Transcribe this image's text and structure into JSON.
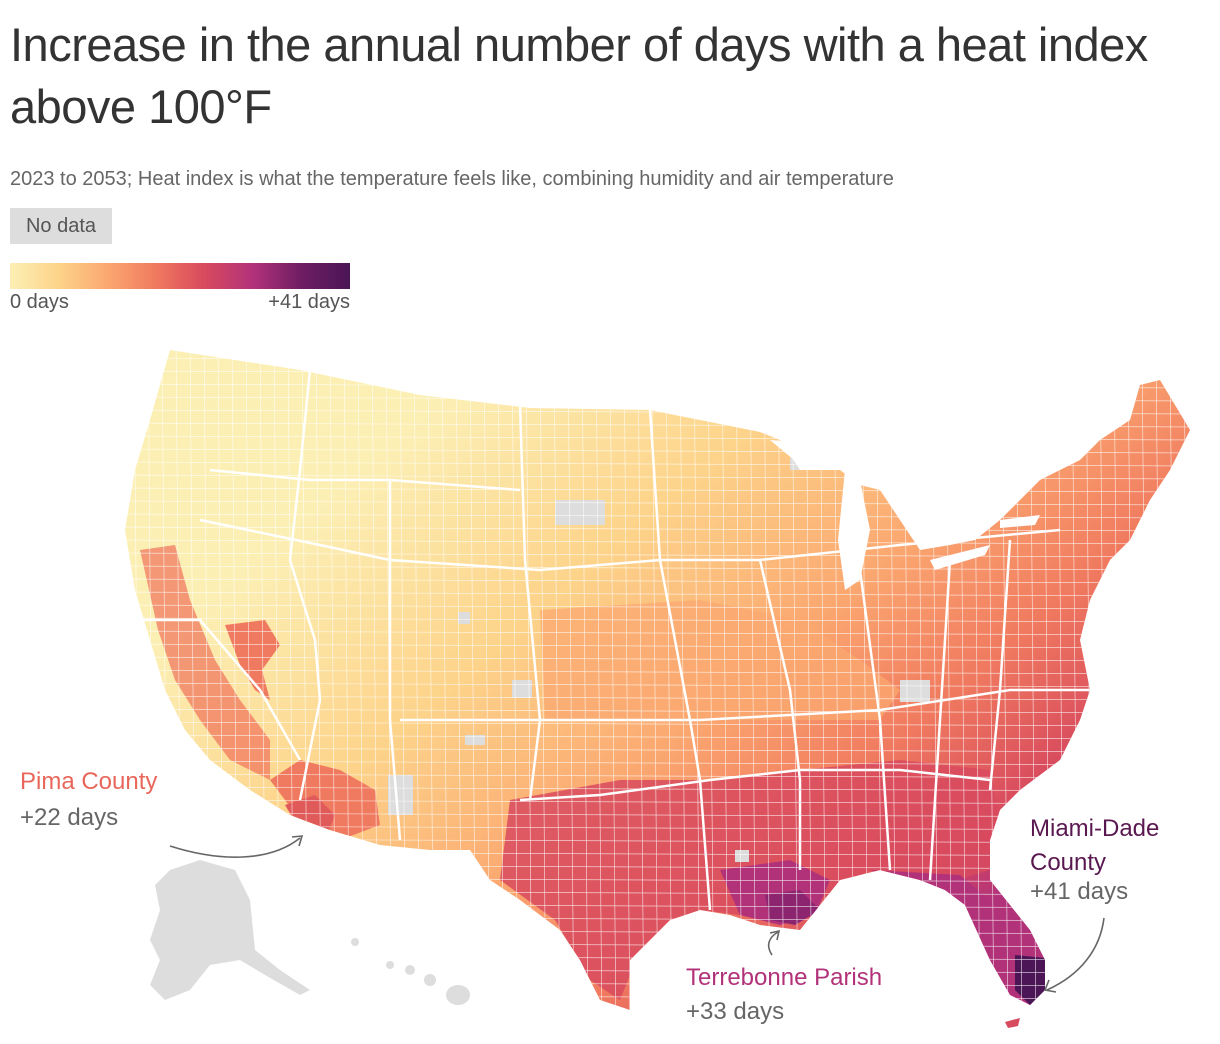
{
  "header": {
    "title": "Increase in the annual number of days with a heat index above 100°F",
    "subtitle": "2023 to 2053; Heat index is what the temperature feels like, combining humidity and air temperature"
  },
  "legend": {
    "no_data_label": "No data",
    "min_label": "0 days",
    "max_label": "+41 days",
    "colors": [
      "#fcefb4",
      "#fdd38a",
      "#fba870",
      "#f07a5f",
      "#d84a5e",
      "#b2327a",
      "#6e1d63",
      "#4b1556"
    ],
    "no_data_color": "#dddddd"
  },
  "annotations": [
    {
      "name": "Pima County",
      "value": "+22 days",
      "color": "#e8675a"
    },
    {
      "name": "Terrebonne Parish",
      "value": "+33 days",
      "color": "#b2327a"
    },
    {
      "name": "Miami-Dade County",
      "value": "+41 days",
      "color": "#5a1850"
    }
  ],
  "scale": {
    "min_days": 0,
    "max_days": 41
  }
}
